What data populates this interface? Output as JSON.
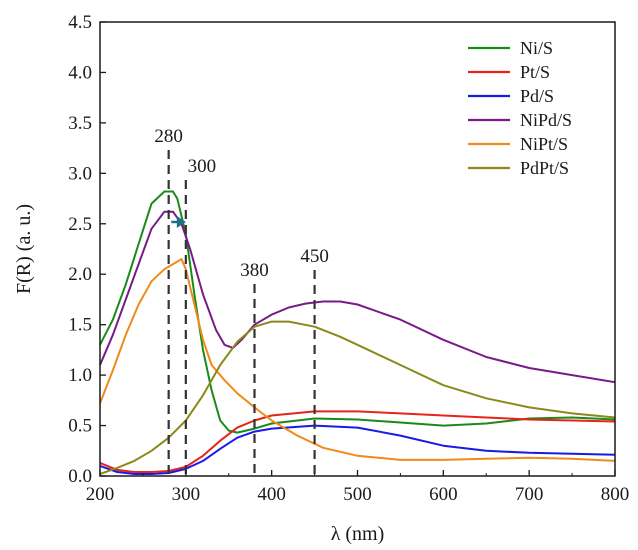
{
  "chart_data": {
    "type": "line",
    "title": "",
    "xlabel": "λ (nm)",
    "ylabel": "F(R) (a. u.)",
    "xlim": [
      200,
      800
    ],
    "ylim": [
      0,
      4.5
    ],
    "xticks": [
      200,
      300,
      400,
      500,
      600,
      700,
      800
    ],
    "yticks": [
      "0.0",
      "0.5",
      "1.0",
      "1.5",
      "2.0",
      "2.5",
      "3.0",
      "3.5",
      "4.0",
      "4.5"
    ],
    "grid": false,
    "legend_position": "top-right",
    "series": [
      {
        "name": "Ni/S",
        "color": "#1a8a1a",
        "points": [
          [
            200,
            1.3
          ],
          [
            215,
            1.55
          ],
          [
            230,
            1.9
          ],
          [
            245,
            2.3
          ],
          [
            260,
            2.7
          ],
          [
            275,
            2.82
          ],
          [
            285,
            2.82
          ],
          [
            290,
            2.75
          ],
          [
            300,
            2.4
          ],
          [
            310,
            1.8
          ],
          [
            320,
            1.25
          ],
          [
            330,
            0.85
          ],
          [
            340,
            0.55
          ],
          [
            350,
            0.45
          ],
          [
            360,
            0.43
          ],
          [
            380,
            0.47
          ],
          [
            400,
            0.52
          ],
          [
            450,
            0.57
          ],
          [
            500,
            0.56
          ],
          [
            550,
            0.53
          ],
          [
            600,
            0.5
          ],
          [
            650,
            0.52
          ],
          [
            700,
            0.57
          ],
          [
            750,
            0.58
          ],
          [
            800,
            0.56
          ]
        ]
      },
      {
        "name": "Pt/S",
        "color": "#e8231a",
        "points": [
          [
            200,
            0.13
          ],
          [
            220,
            0.06
          ],
          [
            240,
            0.04
          ],
          [
            260,
            0.04
          ],
          [
            280,
            0.05
          ],
          [
            300,
            0.09
          ],
          [
            320,
            0.2
          ],
          [
            340,
            0.35
          ],
          [
            360,
            0.48
          ],
          [
            380,
            0.55
          ],
          [
            400,
            0.6
          ],
          [
            450,
            0.64
          ],
          [
            500,
            0.64
          ],
          [
            550,
            0.62
          ],
          [
            600,
            0.6
          ],
          [
            650,
            0.58
          ],
          [
            700,
            0.56
          ],
          [
            750,
            0.55
          ],
          [
            800,
            0.54
          ]
        ]
      },
      {
        "name": "Pd/S",
        "color": "#1a1ae8",
        "points": [
          [
            200,
            0.1
          ],
          [
            220,
            0.04
          ],
          [
            240,
            0.02
          ],
          [
            260,
            0.02
          ],
          [
            280,
            0.03
          ],
          [
            300,
            0.07
          ],
          [
            320,
            0.15
          ],
          [
            340,
            0.27
          ],
          [
            360,
            0.38
          ],
          [
            380,
            0.44
          ],
          [
            400,
            0.47
          ],
          [
            450,
            0.5
          ],
          [
            500,
            0.48
          ],
          [
            550,
            0.4
          ],
          [
            600,
            0.3
          ],
          [
            650,
            0.25
          ],
          [
            700,
            0.23
          ],
          [
            750,
            0.22
          ],
          [
            800,
            0.21
          ]
        ]
      },
      {
        "name": "NiPd/S",
        "color": "#7a1a8a",
        "points": [
          [
            200,
            1.1
          ],
          [
            215,
            1.4
          ],
          [
            230,
            1.75
          ],
          [
            245,
            2.1
          ],
          [
            260,
            2.45
          ],
          [
            275,
            2.62
          ],
          [
            285,
            2.62
          ],
          [
            295,
            2.5
          ],
          [
            305,
            2.25
          ],
          [
            320,
            1.8
          ],
          [
            335,
            1.45
          ],
          [
            345,
            1.3
          ],
          [
            355,
            1.27
          ],
          [
            365,
            1.35
          ],
          [
            380,
            1.5
          ],
          [
            400,
            1.6
          ],
          [
            420,
            1.67
          ],
          [
            440,
            1.71
          ],
          [
            460,
            1.73
          ],
          [
            480,
            1.73
          ],
          [
            500,
            1.7
          ],
          [
            550,
            1.55
          ],
          [
            600,
            1.35
          ],
          [
            650,
            1.18
          ],
          [
            700,
            1.07
          ],
          [
            750,
            1.0
          ],
          [
            800,
            0.93
          ]
        ]
      },
      {
        "name": "NiPt/S",
        "color": "#f08a1a",
        "points": [
          [
            200,
            0.72
          ],
          [
            215,
            1.05
          ],
          [
            230,
            1.4
          ],
          [
            245,
            1.7
          ],
          [
            260,
            1.93
          ],
          [
            275,
            2.05
          ],
          [
            285,
            2.1
          ],
          [
            295,
            2.15
          ],
          [
            300,
            2.05
          ],
          [
            310,
            1.7
          ],
          [
            320,
            1.35
          ],
          [
            330,
            1.1
          ],
          [
            345,
            0.95
          ],
          [
            360,
            0.82
          ],
          [
            380,
            0.68
          ],
          [
            400,
            0.55
          ],
          [
            430,
            0.4
          ],
          [
            460,
            0.28
          ],
          [
            500,
            0.2
          ],
          [
            550,
            0.16
          ],
          [
            600,
            0.16
          ],
          [
            650,
            0.17
          ],
          [
            700,
            0.18
          ],
          [
            750,
            0.17
          ],
          [
            800,
            0.15
          ]
        ]
      },
      {
        "name": "PdPt/S",
        "color": "#8a8a1a",
        "points": [
          [
            200,
            0.02
          ],
          [
            220,
            0.08
          ],
          [
            240,
            0.15
          ],
          [
            260,
            0.25
          ],
          [
            280,
            0.38
          ],
          [
            300,
            0.55
          ],
          [
            320,
            0.8
          ],
          [
            340,
            1.1
          ],
          [
            360,
            1.33
          ],
          [
            380,
            1.48
          ],
          [
            400,
            1.53
          ],
          [
            420,
            1.53
          ],
          [
            450,
            1.48
          ],
          [
            480,
            1.38
          ],
          [
            500,
            1.3
          ],
          [
            550,
            1.1
          ],
          [
            600,
            0.9
          ],
          [
            650,
            0.77
          ],
          [
            700,
            0.68
          ],
          [
            750,
            0.62
          ],
          [
            800,
            0.58
          ]
        ]
      }
    ],
    "annotations": [
      {
        "text": "280",
        "x": 280
      },
      {
        "text": "300",
        "x": 300
      },
      {
        "text": "380",
        "x": 380
      },
      {
        "text": "450",
        "x": 450
      }
    ],
    "arrow": {
      "from": [
        283,
        2.27
      ],
      "to": [
        300,
        2.27
      ],
      "color": "#1f6f8b"
    }
  }
}
